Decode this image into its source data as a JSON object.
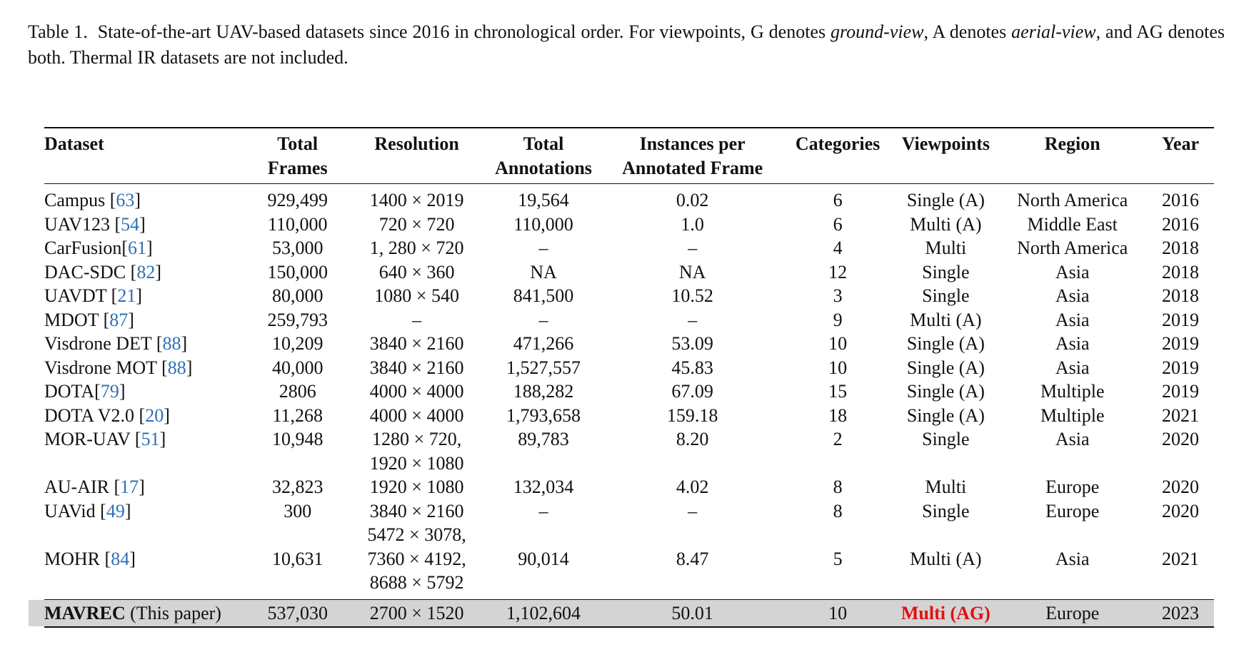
{
  "caption": {
    "label": "Table 1.",
    "p1": "State-of-the-art UAV-based datasets since 2016 in chronological order. For viewpoints, G denotes ",
    "i1": "ground-view",
    "p2": ", A denotes ",
    "i2": "aerial-view",
    "p3": ", and AG denotes both. Thermal IR datasets are not included."
  },
  "table": {
    "headers": [
      [
        "Dataset"
      ],
      [
        "Total",
        "Frames"
      ],
      [
        "Resolution"
      ],
      [
        "Total",
        "Annotations"
      ],
      [
        "Instances per",
        "Annotated Frame"
      ],
      [
        "Categories"
      ],
      [
        "Viewpoints"
      ],
      [
        "Region"
      ],
      [
        "Year"
      ]
    ],
    "rows": [
      {
        "name": "Campus ",
        "cite": "63",
        "frames": [
          "929,499"
        ],
        "resolution": [
          "1400 × 2019"
        ],
        "annotations": [
          "19,564"
        ],
        "instances": [
          "0.02"
        ],
        "categories": [
          "6"
        ],
        "viewpoints": [
          "Single (A)"
        ],
        "region": [
          "North America"
        ],
        "year": [
          "2016"
        ]
      },
      {
        "name": "UAV123 ",
        "cite": "54",
        "frames": [
          "110,000"
        ],
        "resolution": [
          "720 × 720"
        ],
        "annotations": [
          "110,000"
        ],
        "instances": [
          "1.0"
        ],
        "categories": [
          "6"
        ],
        "viewpoints": [
          "Multi (A)"
        ],
        "region": [
          "Middle East"
        ],
        "year": [
          "2016"
        ]
      },
      {
        "name": "CarFusion",
        "cite": "61",
        "frames": [
          "53,000"
        ],
        "resolution": [
          "1, 280 × 720"
        ],
        "annotations": [
          "–"
        ],
        "instances": [
          "–"
        ],
        "categories": [
          "4"
        ],
        "viewpoints": [
          "Multi"
        ],
        "region": [
          "North America"
        ],
        "year": [
          "2018"
        ]
      },
      {
        "name": "DAC-SDC ",
        "cite": "82",
        "frames": [
          "150,000"
        ],
        "resolution": [
          "640 × 360"
        ],
        "annotations": [
          "NA"
        ],
        "instances": [
          "NA"
        ],
        "categories": [
          "12"
        ],
        "viewpoints": [
          "Single"
        ],
        "region": [
          "Asia"
        ],
        "year": [
          "2018"
        ]
      },
      {
        "name": "UAVDT ",
        "cite": "21",
        "frames": [
          "80,000"
        ],
        "resolution": [
          "1080 × 540"
        ],
        "annotations": [
          "841,500"
        ],
        "instances": [
          "10.52"
        ],
        "categories": [
          "3"
        ],
        "viewpoints": [
          "Single"
        ],
        "region": [
          "Asia"
        ],
        "year": [
          "2018"
        ]
      },
      {
        "name": "MDOT ",
        "cite": "87",
        "frames": [
          "259,793"
        ],
        "resolution": [
          "–"
        ],
        "annotations": [
          "–"
        ],
        "instances": [
          "–"
        ],
        "categories": [
          "9"
        ],
        "viewpoints": [
          "Multi (A)"
        ],
        "region": [
          "Asia"
        ],
        "year": [
          "2019"
        ]
      },
      {
        "name": "Visdrone DET ",
        "cite": "88",
        "frames": [
          "10,209"
        ],
        "resolution": [
          "3840 × 2160"
        ],
        "annotations": [
          "471,266"
        ],
        "instances": [
          "53.09"
        ],
        "categories": [
          "10"
        ],
        "viewpoints": [
          "Single (A)"
        ],
        "region": [
          "Asia"
        ],
        "year": [
          "2019"
        ]
      },
      {
        "name": "Visdrone MOT ",
        "cite": "88",
        "frames": [
          "40,000"
        ],
        "resolution": [
          "3840 × 2160"
        ],
        "annotations": [
          "1,527,557"
        ],
        "instances": [
          "45.83"
        ],
        "categories": [
          "10"
        ],
        "viewpoints": [
          "Single (A)"
        ],
        "region": [
          "Asia"
        ],
        "year": [
          "2019"
        ]
      },
      {
        "name": "DOTA",
        "cite": "79",
        "frames": [
          "2806"
        ],
        "resolution": [
          "4000 × 4000"
        ],
        "annotations": [
          "188,282"
        ],
        "instances": [
          "67.09"
        ],
        "categories": [
          "15"
        ],
        "viewpoints": [
          "Single (A)"
        ],
        "region": [
          "Multiple"
        ],
        "year": [
          "2019"
        ]
      },
      {
        "name": "DOTA V2.0 ",
        "cite": "20",
        "frames": [
          "11,268"
        ],
        "resolution": [
          "4000 × 4000"
        ],
        "annotations": [
          "1,793,658"
        ],
        "instances": [
          "159.18"
        ],
        "categories": [
          "18"
        ],
        "viewpoints": [
          "Single (A)"
        ],
        "region": [
          "Multiple"
        ],
        "year": [
          "2021"
        ]
      },
      {
        "name": "MOR-UAV ",
        "cite": "51",
        "frames": [
          "10,948"
        ],
        "resolution": [
          "1280 × 720,",
          "1920 × 1080"
        ],
        "annotations": [
          "89,783"
        ],
        "instances": [
          "8.20"
        ],
        "categories": [
          "2"
        ],
        "viewpoints": [
          "Single"
        ],
        "region": [
          "Asia"
        ],
        "year": [
          "2020"
        ]
      },
      {
        "name": "AU-AIR ",
        "cite": "17",
        "frames": [
          "32,823"
        ],
        "resolution": [
          "1920 × 1080"
        ],
        "annotations": [
          "132,034"
        ],
        "instances": [
          "4.02"
        ],
        "categories": [
          "8"
        ],
        "viewpoints": [
          "Multi"
        ],
        "region": [
          "Europe"
        ],
        "year": [
          "2020"
        ]
      },
      {
        "name": "UAVid ",
        "cite": "49",
        "frames": [
          "300"
        ],
        "resolution": [
          "3840 × 2160"
        ],
        "annotations": [
          "–"
        ],
        "instances": [
          "–"
        ],
        "categories": [
          "8"
        ],
        "viewpoints": [
          "Single"
        ],
        "region": [
          "Europe"
        ],
        "year": [
          "2020"
        ]
      },
      {
        "name": "MOHR ",
        "cite": "84",
        "frames": [
          "",
          "10,631"
        ],
        "resolution": [
          "5472 × 3078,",
          "7360 × 4192,",
          "8688 × 5792"
        ],
        "annotations": [
          "",
          "90,014"
        ],
        "instances": [
          "",
          "8.47"
        ],
        "categories": [
          "",
          "5"
        ],
        "viewpoints": [
          "",
          "Multi (A)"
        ],
        "region": [
          "",
          "Asia"
        ],
        "year": [
          "",
          "2021"
        ]
      }
    ],
    "final": {
      "name_bold": "MAVREC",
      "name_rest": " (This paper)",
      "frames": "537,030",
      "resolution": "2700 × 1520",
      "annotations": "1,102,604",
      "instances": "50.01",
      "categories": "10",
      "viewpoints": "Multi (AG)",
      "region": "Europe",
      "year": "2023"
    }
  },
  "colors": {
    "citation": "#2d6fb5",
    "highlight": "#e21010",
    "final_row_bg": "#d4d4d4"
  }
}
